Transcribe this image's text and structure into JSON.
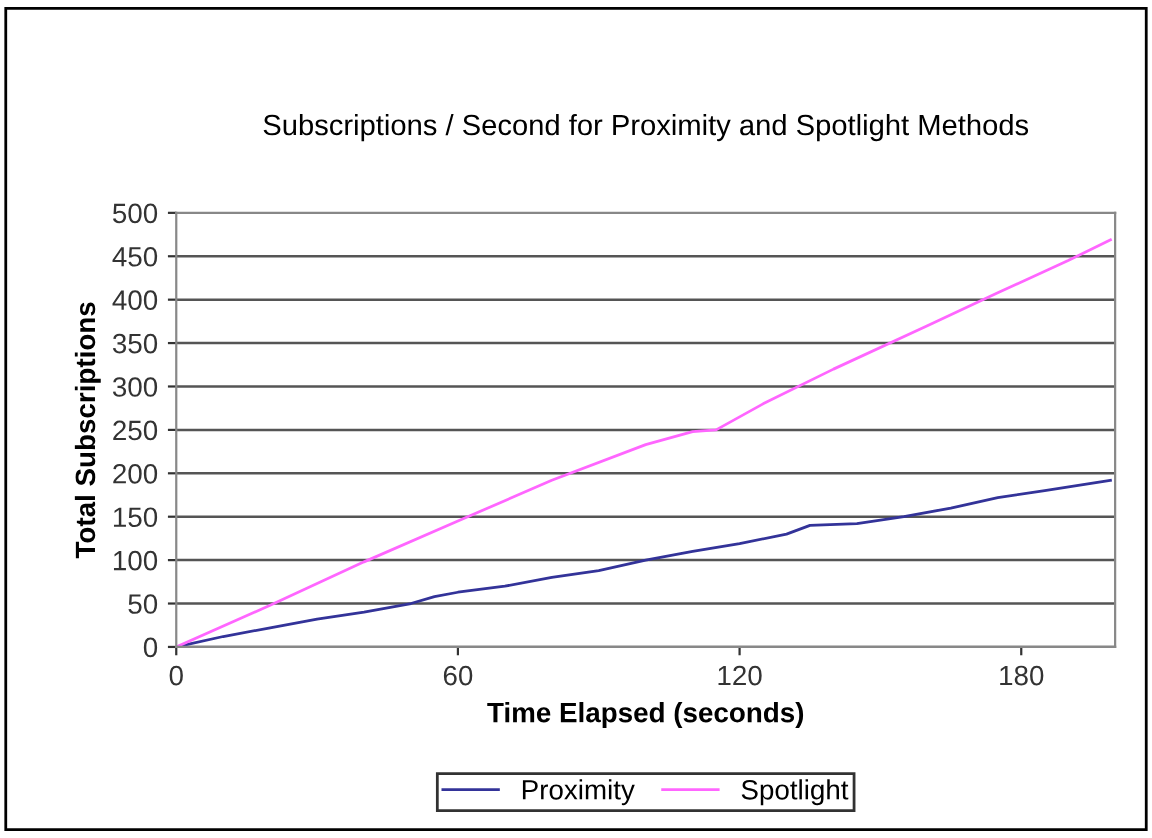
{
  "chart_data": {
    "type": "line",
    "title": "Subscriptions / Second for Proximity and Spotlight Methods",
    "xlabel": "Time Elapsed (seconds)",
    "ylabel": "Total Subscriptions",
    "xlim": [
      0,
      200
    ],
    "xticks": [
      0,
      60,
      120,
      180
    ],
    "ylim": [
      0,
      500
    ],
    "yticks": [
      0,
      50,
      100,
      150,
      200,
      250,
      300,
      350,
      400,
      450,
      500
    ],
    "grid": "y",
    "legend": "bottom",
    "marker": "none",
    "line_style": "solid",
    "series": [
      {
        "name": "Proximity",
        "color": "#333399",
        "x": [
          0,
          10,
          20,
          30,
          40,
          50,
          55,
          60,
          70,
          80,
          90,
          100,
          110,
          120,
          130,
          135,
          145,
          155,
          165,
          175,
          185,
          199
        ],
        "values": [
          0,
          12,
          22,
          32,
          40,
          50,
          58,
          63,
          70,
          80,
          88,
          100,
          110,
          119,
          130,
          140,
          142,
          150,
          160,
          172,
          180,
          192
        ]
      },
      {
        "name": "Spotlight",
        "color": "#ff66ff",
        "x": [
          0,
          20,
          40,
          60,
          80,
          100,
          110,
          115,
          125,
          140,
          160,
          175,
          190,
          199
        ],
        "values": [
          0,
          48,
          98,
          145,
          192,
          233,
          248,
          250,
          280,
          320,
          370,
          408,
          445,
          469
        ]
      }
    ]
  }
}
